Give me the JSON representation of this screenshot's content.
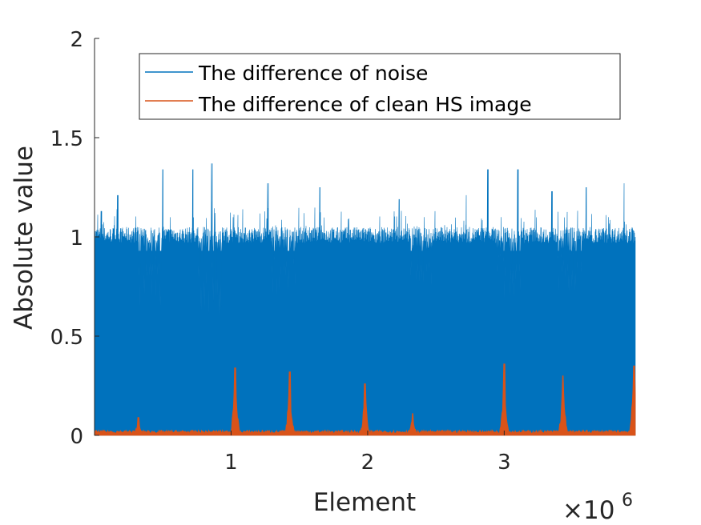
{
  "chart_data": {
    "type": "area",
    "xlabel": "Element",
    "ylabel": "Absolute value",
    "x_exponent_label": "×10",
    "x_exponent_power": "6",
    "xlim": [
      1,
      3960000
    ],
    "ylim": [
      0,
      2
    ],
    "x_ticks": [
      1000000,
      2000000,
      3000000
    ],
    "x_tick_labels": [
      "1",
      "2",
      "3"
    ],
    "y_ticks": [
      0,
      0.5,
      1,
      1.5,
      2
    ],
    "y_tick_labels": [
      "0",
      "0.5",
      "1",
      "1.5",
      "2"
    ],
    "grid": false,
    "legend_position": "top-right",
    "series": [
      {
        "name": "The difference of noise",
        "color": "#0072BD",
        "typical_max": 1.03,
        "peak_max": 1.37,
        "notable_peaks": [
          [
            50000.0,
            1.13
          ],
          [
            170000.0,
            1.21
          ],
          [
            500000.0,
            1.34
          ],
          [
            720000.0,
            1.34
          ],
          [
            860000.0,
            1.37
          ],
          [
            1270000.0,
            1.27
          ],
          [
            1650000.0,
            1.25
          ],
          [
            2230000.0,
            1.19
          ],
          [
            2450000.0,
            1.2
          ],
          [
            2720000.0,
            1.21
          ],
          [
            2880000.0,
            1.34
          ],
          [
            3100000.0,
            1.34
          ],
          [
            3350000.0,
            1.23
          ],
          [
            3600000.0,
            1.25
          ],
          [
            3880000.0,
            1.27
          ]
        ],
        "dips": [
          [
            400000.0,
            0.65
          ],
          [
            850000.0,
            0.6
          ],
          [
            1380000.0,
            0.7
          ],
          [
            2400000.0,
            0.75
          ],
          [
            3030000.0,
            0.68
          ],
          [
            3480000.0,
            0.7
          ]
        ]
      },
      {
        "name": "The difference of clean HS image",
        "color": "#D95319",
        "typical_max": 0.02,
        "peaks": [
          [
            320000.0,
            0.09
          ],
          [
            1030000.0,
            0.34
          ],
          [
            1430000.0,
            0.32
          ],
          [
            1980000.0,
            0.26
          ],
          [
            2330000.0,
            0.11
          ],
          [
            3000000.0,
            0.36
          ],
          [
            3430000.0,
            0.3
          ],
          [
            3950000.0,
            0.35
          ]
        ]
      }
    ]
  }
}
